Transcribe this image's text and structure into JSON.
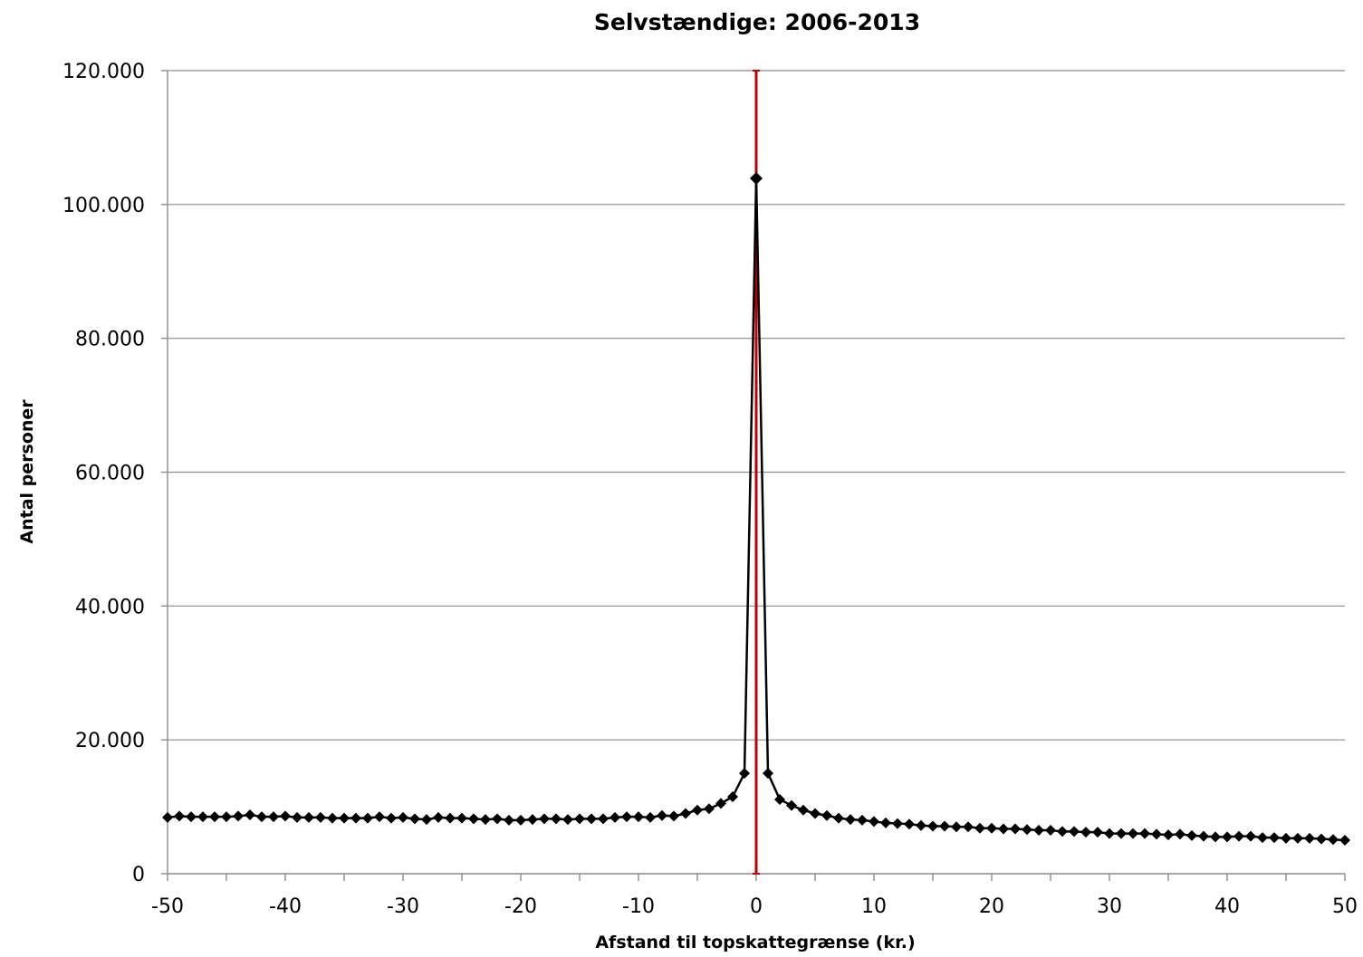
{
  "chart_data": {
    "type": "line",
    "title": "Selvstændige: 2006-2013",
    "xlabel": "Afstand til topskattegrænse (kr.)",
    "ylabel": "Antal personer",
    "xlim": [
      -50,
      50
    ],
    "ylim": [
      0,
      120000
    ],
    "x_ticks": [
      -50,
      -40,
      -30,
      -20,
      -10,
      0,
      10,
      20,
      30,
      40,
      50
    ],
    "x_tick_labels": [
      "-50",
      "-40",
      "-30",
      "-20",
      "-10",
      "0",
      "10",
      "20",
      "30",
      "40",
      "50"
    ],
    "y_ticks": [
      0,
      20000,
      40000,
      60000,
      80000,
      100000,
      120000
    ],
    "y_tick_labels": [
      "0",
      "20.000",
      "40.000",
      "60.000",
      "80.000",
      "100.000",
      "120.000"
    ],
    "grid": true,
    "legend": "none",
    "reference_line": {
      "x": 0,
      "color": "#c00000"
    },
    "series": [
      {
        "color": "#000000",
        "marker": "diamond",
        "x": [
          -50,
          -49,
          -48,
          -47,
          -46,
          -45,
          -44,
          -43,
          -42,
          -41,
          -40,
          -39,
          -38,
          -37,
          -36,
          -35,
          -34,
          -33,
          -32,
          -31,
          -30,
          -29,
          -28,
          -27,
          -26,
          -25,
          -24,
          -23,
          -22,
          -21,
          -20,
          -19,
          -18,
          -17,
          -16,
          -15,
          -14,
          -13,
          -12,
          -11,
          -10,
          -9,
          -8,
          -7,
          -6,
          -5,
          -4,
          -3,
          -2,
          -1,
          0,
          1,
          2,
          3,
          4,
          5,
          6,
          7,
          8,
          9,
          10,
          11,
          12,
          13,
          14,
          15,
          16,
          17,
          18,
          19,
          20,
          21,
          22,
          23,
          24,
          25,
          26,
          27,
          28,
          29,
          30,
          31,
          32,
          33,
          34,
          35,
          36,
          37,
          38,
          39,
          40,
          41,
          42,
          43,
          44,
          45,
          46,
          47,
          48,
          49,
          50
        ],
        "y": [
          8400,
          8600,
          8500,
          8500,
          8500,
          8500,
          8600,
          8800,
          8500,
          8500,
          8600,
          8400,
          8400,
          8400,
          8300,
          8300,
          8300,
          8300,
          8500,
          8300,
          8400,
          8200,
          8100,
          8400,
          8300,
          8300,
          8200,
          8100,
          8200,
          8000,
          8000,
          8100,
          8200,
          8200,
          8100,
          8200,
          8200,
          8200,
          8400,
          8500,
          8500,
          8400,
          8700,
          8600,
          9000,
          9500,
          9700,
          10500,
          11500,
          15000,
          103900,
          15000,
          11100,
          10200,
          9500,
          9000,
          8700,
          8300,
          8100,
          8000,
          7800,
          7600,
          7500,
          7400,
          7200,
          7100,
          7100,
          7000,
          7000,
          6800,
          6800,
          6700,
          6700,
          6600,
          6500,
          6500,
          6300,
          6300,
          6200,
          6200,
          6000,
          6000,
          6000,
          6000,
          5900,
          5800,
          5900,
          5700,
          5600,
          5500,
          5500,
          5600,
          5600,
          5400,
          5400,
          5300,
          5300,
          5300,
          5200,
          5100,
          5000
        ]
      }
    ]
  }
}
